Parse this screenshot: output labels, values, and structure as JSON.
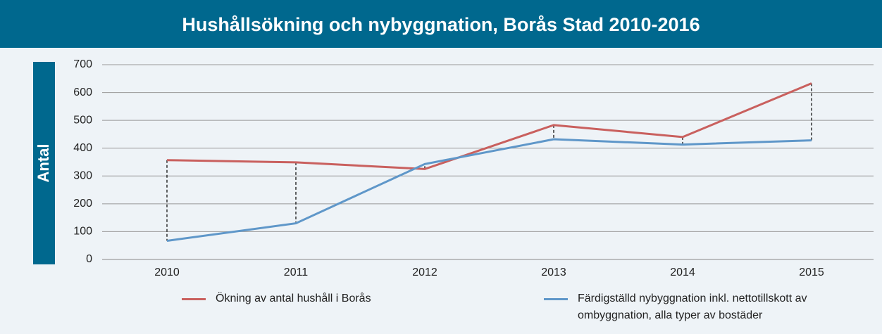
{
  "chart_data": {
    "type": "line",
    "title": "Hushållsökning och nybyggnation, Borås Stad 2010-2016",
    "y_label": "Antal",
    "categories": [
      "2010",
      "2011",
      "2012",
      "2013",
      "2014",
      "2015"
    ],
    "series": [
      {
        "name": "Ökning av antal hushåll i Borås",
        "color": "#c9605e",
        "values": [
          357,
          349,
          325,
          483,
          440,
          633
        ]
      },
      {
        "name": "Färdigställd nybyggnation inkl. nettotillskott av ombyggnation, alla typer av bostäder",
        "color": "#5f97c9",
        "values": [
          67,
          130,
          343,
          432,
          413,
          428
        ]
      }
    ],
    "ylim": [
      0,
      700
    ],
    "yticks": [
      0,
      100,
      200,
      300,
      400,
      500,
      600,
      700
    ],
    "grid": true,
    "drop_lines": true
  }
}
